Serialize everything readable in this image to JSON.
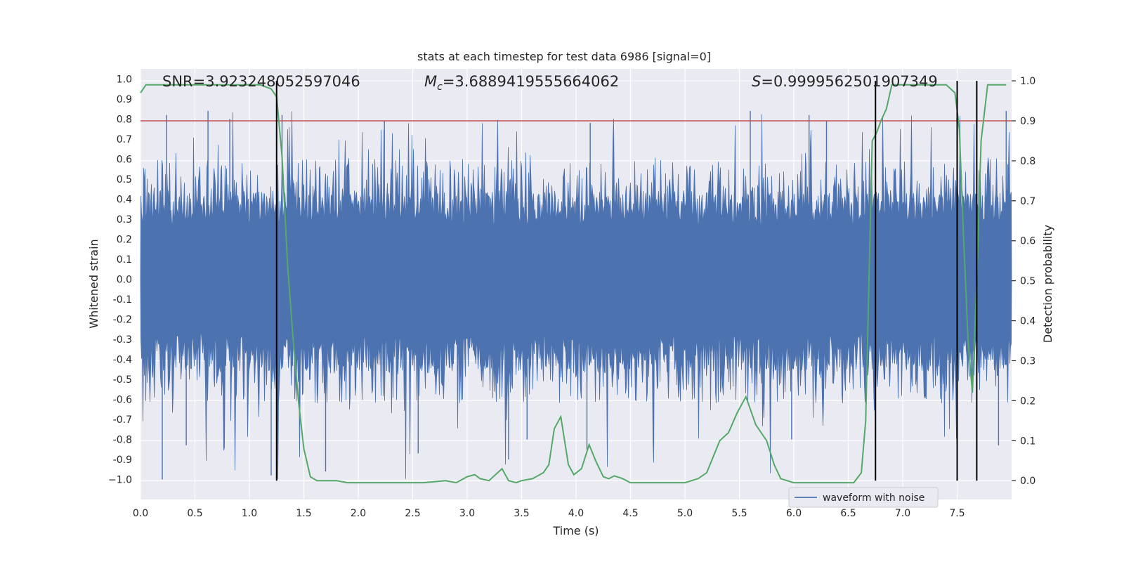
{
  "chart_data": {
    "type": "line",
    "title": "stats at each timestep for test data 6986 [signal=0]",
    "xlabel": "Time (s)",
    "ylabel": "Whitened strain",
    "y2label": "Detection probability",
    "xlim": [
      0.0,
      8.0
    ],
    "ylim": [
      -1.1,
      1.05
    ],
    "y2lim": [
      -0.047,
      1.03
    ],
    "xticks": [
      "0.0",
      "0.5",
      "1.0",
      "1.5",
      "2.0",
      "2.5",
      "3.0",
      "3.5",
      "4.0",
      "4.5",
      "5.0",
      "5.5",
      "6.0",
      "6.5",
      "7.0",
      "7.5"
    ],
    "yticks": [
      "1.0",
      "0.9",
      "0.8",
      "0.7",
      "0.6",
      "0.5",
      "0.4",
      "0.3",
      "0.2",
      "0.1",
      "0.0",
      "-0.1",
      "-0.2",
      "-0.3",
      "-0.4",
      "-0.5",
      "-0.6",
      "-0.7",
      "-0.8",
      "-0.9",
      "−1.0"
    ],
    "y2ticks": [
      "1.0",
      "0.9",
      "0.8",
      "0.7",
      "0.6",
      "0.5",
      "0.4",
      "0.3",
      "0.2",
      "0.1",
      "0.0"
    ],
    "grid": true,
    "legend_placement": "lower-right",
    "annotations": {
      "snr": "SNR=3.923248052597046",
      "mc_symbol": "M",
      "mc_sub": "c",
      "mc_value": "=3.6889419555664062",
      "s_symbol": "S",
      "s_value": "=0.9999562501907349"
    },
    "threshold": 0.9,
    "vlines": [
      1.25,
      6.75,
      7.5,
      7.68
    ],
    "series": [
      {
        "name": "waveform with noise",
        "color": "#4c72b0",
        "sample_peaks": {
          "upper_typical": 0.4,
          "upper_max": 0.84,
          "lower_typical": -0.42,
          "lower_min": -1.0
        }
      },
      {
        "color": "#55a868",
        "axis": "right",
        "x": [
          0.0,
          0.05,
          0.1,
          0.2,
          0.3,
          0.4,
          0.5,
          0.6,
          0.7,
          0.8,
          0.9,
          1.0,
          1.1,
          1.2,
          1.25,
          1.3,
          1.35,
          1.4,
          1.45,
          1.5,
          1.56,
          1.62,
          1.7,
          1.8,
          1.9,
          2.0,
          2.2,
          2.4,
          2.6,
          2.8,
          2.9,
          3.0,
          3.07,
          3.12,
          3.2,
          3.32,
          3.38,
          3.45,
          3.5,
          3.6,
          3.7,
          3.75,
          3.8,
          3.86,
          3.93,
          3.98,
          4.05,
          4.12,
          4.18,
          4.25,
          4.3,
          4.35,
          4.42,
          4.5,
          4.6,
          4.8,
          5.0,
          5.12,
          5.2,
          5.32,
          5.4,
          5.48,
          5.56,
          5.65,
          5.75,
          5.82,
          5.88,
          6.0,
          6.2,
          6.4,
          6.55,
          6.62,
          6.66,
          6.72,
          6.76,
          6.8,
          6.85,
          6.9,
          7.0,
          7.1,
          7.2,
          7.3,
          7.4,
          7.48,
          7.52,
          7.56,
          7.6,
          7.64,
          7.68,
          7.72,
          7.78,
          7.85,
          7.95
        ],
        "y": [
          0.97,
          0.99,
          0.99,
          0.99,
          0.99,
          0.99,
          0.99,
          0.99,
          0.99,
          0.99,
          0.99,
          0.99,
          0.99,
          0.98,
          0.96,
          0.81,
          0.54,
          0.36,
          0.2,
          0.08,
          0.01,
          0.0,
          0.0,
          0.0,
          -0.005,
          -0.005,
          -0.005,
          -0.005,
          -0.005,
          0.0,
          -0.005,
          0.01,
          0.015,
          0.005,
          0.0,
          0.03,
          0.0,
          -0.005,
          0.0,
          0.005,
          0.02,
          0.04,
          0.13,
          0.16,
          0.04,
          0.015,
          0.03,
          0.09,
          0.05,
          0.01,
          0.005,
          0.012,
          0.006,
          -0.005,
          -0.005,
          -0.005,
          -0.005,
          0.005,
          0.02,
          0.1,
          0.12,
          0.17,
          0.21,
          0.14,
          0.1,
          0.04,
          0.005,
          -0.005,
          -0.005,
          -0.005,
          -0.005,
          0.02,
          0.15,
          0.85,
          0.87,
          0.9,
          0.93,
          0.99,
          0.99,
          0.99,
          0.99,
          0.99,
          0.99,
          0.97,
          0.88,
          0.6,
          0.35,
          0.22,
          0.5,
          0.85,
          0.99,
          0.99,
          0.99
        ]
      }
    ]
  }
}
